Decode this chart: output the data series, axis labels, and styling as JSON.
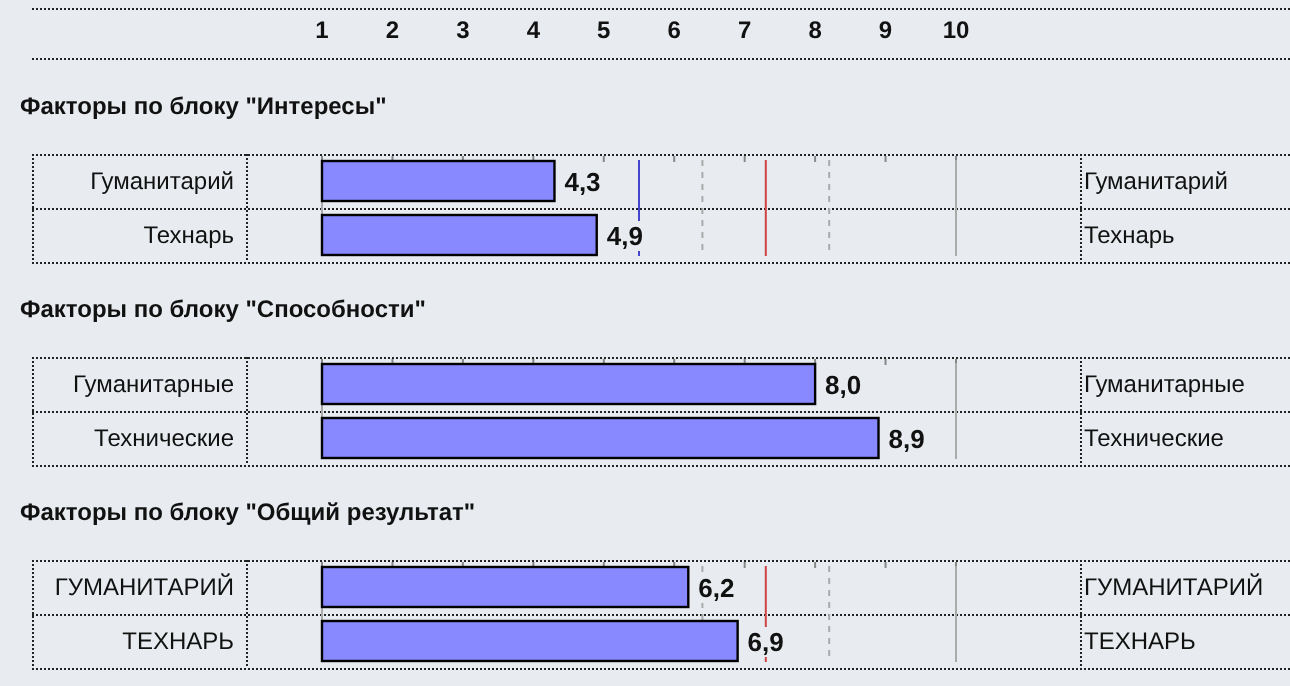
{
  "chart_data": [
    {
      "type": "bar",
      "orientation": "horizontal",
      "title": "Факторы по блоку \"Интересы\"",
      "categories": [
        "Гуманитарий",
        "Технарь"
      ],
      "y2_categories": [
        "Гуманитарий",
        "Технарь"
      ],
      "values": [
        4.3,
        4.9
      ],
      "value_labels": [
        "4,3",
        "4,9"
      ],
      "color": "#8888ff",
      "xlim": [
        1,
        10
      ],
      "xticks": [
        1,
        2,
        3,
        4,
        5,
        6,
        7,
        8,
        9,
        10
      ],
      "ref_lines": [
        {
          "axis": "x",
          "value": 5.5,
          "color": "#4444cc"
        },
        {
          "axis": "x",
          "value": 6.4,
          "color": "#aaaaaa",
          "line_style": "dashed"
        },
        {
          "axis": "x",
          "value": 7.3,
          "color": "#cc4444"
        },
        {
          "axis": "x",
          "value": 8.2,
          "color": "#aaaaaa",
          "line_style": "dashed"
        }
      ]
    },
    {
      "type": "bar",
      "orientation": "horizontal",
      "title": "Факторы по блоку \"Способности\"",
      "categories": [
        "Гуманитарные",
        "Технические"
      ],
      "y2_categories": [
        "Гуманитарные",
        "Технические"
      ],
      "values": [
        8.0,
        8.9
      ],
      "value_labels": [
        "8,0",
        "8,9"
      ],
      "color": "#8888ff",
      "xlim": [
        1,
        10
      ],
      "xticks": [
        1,
        2,
        3,
        4,
        5,
        6,
        7,
        8,
        9,
        10
      ],
      "tick_labels": "y"
    },
    {
      "type": "bar",
      "orientation": "horizontal",
      "title": "Факторы по блоку \"Общий результат\"",
      "categories": [
        "ГУМАНИТАРИЙ",
        "ТЕХНАРЬ"
      ],
      "y2_categories": [
        "ГУМАНИТАРИЙ",
        "ТЕХНАРЬ"
      ],
      "values": [
        6.2,
        6.9
      ],
      "value_labels": [
        "6,2",
        "6,9"
      ],
      "color": "#8888ff",
      "xlim": [
        1,
        10
      ],
      "xticks": [
        1,
        2,
        3,
        4,
        5,
        6,
        7,
        8,
        9,
        10
      ],
      "tick_labels": "y",
      "ref_lines": [
        {
          "axis": "x",
          "value": 6.4,
          "color": "#aaaaaa",
          "line_style": "dashed"
        },
        {
          "axis": "x",
          "value": 7.3,
          "color": "#cc4444"
        },
        {
          "axis": "x",
          "value": 8.2,
          "color": "#aaaaaa",
          "line_style": "dashed"
        }
      ]
    }
  ]
}
